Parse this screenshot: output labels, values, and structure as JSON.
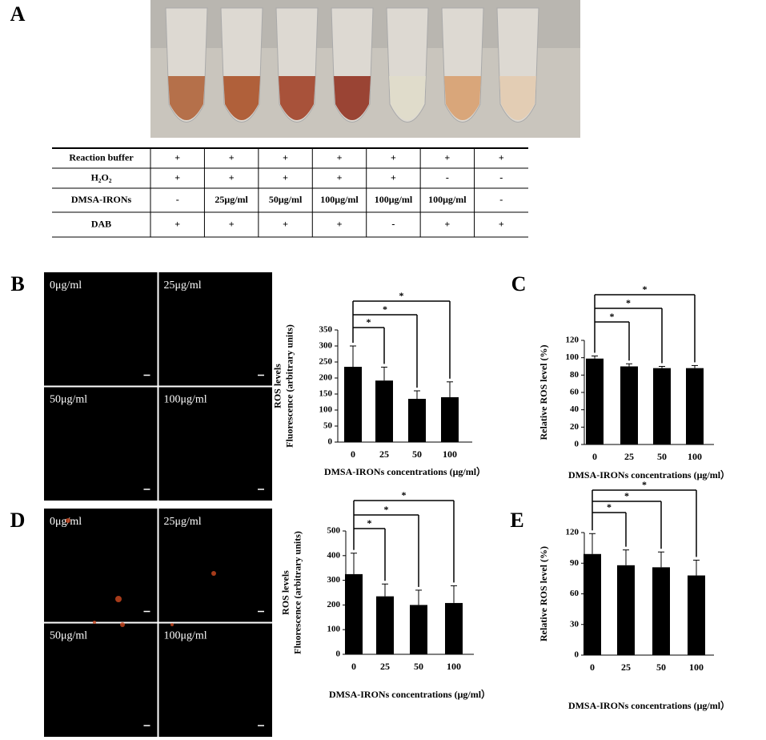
{
  "panel_labels": [
    "A",
    "B",
    "C",
    "D",
    "E"
  ],
  "table": {
    "rows": [
      [
        "Reaction buffer",
        "+",
        "+",
        "+",
        "+",
        "+",
        "+",
        "+"
      ],
      [
        "H₂O₂",
        "+",
        "+",
        "+",
        "+",
        "+",
        "-",
        "-"
      ],
      [
        "DMSA-IRONs",
        "-",
        "25μg/ml",
        "50μg/ml",
        "100μg/ml",
        "100μg/ml",
        "100μg/ml",
        "-"
      ],
      [
        "DAB",
        "+",
        "+",
        "+",
        "+",
        "-",
        "+",
        "+"
      ]
    ]
  },
  "micrographs": [
    [
      "0μg/ml",
      "25μg/ml",
      "50μg/ml",
      "100μg/ml"
    ],
    [
      "0μg/ml",
      "25μg/ml",
      "50μg/ml",
      "100μg/ml"
    ]
  ],
  "chart_data": [
    {
      "type": "bar",
      "ylabel": [
        "ROS levels",
        "Fluorescence (arbitrary units)"
      ],
      "xlabel": "DMSA-IRONs concentrations (μg/ml）",
      "categories": [
        "0",
        "25",
        "50",
        "100"
      ],
      "values": [
        235,
        192,
        135,
        140
      ],
      "errors": [
        65,
        42,
        25,
        48
      ],
      "ylim": [
        0,
        350
      ],
      "yticks": [
        0,
        50,
        100,
        150,
        200,
        250,
        300,
        350
      ],
      "annotations": [
        "*",
        "*",
        "*"
      ],
      "color": "#000000"
    },
    {
      "type": "bar",
      "ylabel": [
        "Relative ROS level (%)"
      ],
      "xlabel": "DMSA-IRONs concentrations (μg/ml）",
      "categories": [
        "0",
        "25",
        "50",
        "100"
      ],
      "values": [
        99,
        90,
        88,
        88
      ],
      "errors": [
        3,
        3,
        2,
        3
      ],
      "ylim": [
        0,
        120
      ],
      "yticks": [
        0,
        20,
        40,
        60,
        80,
        100,
        120
      ],
      "annotations": [
        "*",
        "*",
        "*"
      ],
      "color": "#000000"
    },
    {
      "type": "bar",
      "ylabel": [
        "ROS levels",
        "Fluorescence (arbitrary units)"
      ],
      "xlabel": "DMSA-IRONs concentrations (μg/ml）",
      "categories": [
        "0",
        "25",
        "50",
        "100"
      ],
      "values": [
        325,
        235,
        200,
        208
      ],
      "errors": [
        85,
        50,
        60,
        70
      ],
      "ylim": [
        0,
        500
      ],
      "yticks": [
        0,
        100,
        200,
        300,
        400,
        500
      ],
      "annotations": [
        "*",
        "*",
        "*"
      ],
      "color": "#000000"
    },
    {
      "type": "bar",
      "ylabel": [
        "Relative ROS level (%)"
      ],
      "xlabel": "DMSA-IRONs concentrations (μg/ml）",
      "categories": [
        "0",
        "25",
        "50",
        "100"
      ],
      "values": [
        99,
        88,
        86,
        78
      ],
      "errors": [
        20,
        15,
        15,
        15
      ],
      "ylim": [
        0,
        120
      ],
      "yticks": [
        0,
        30,
        60,
        90,
        120
      ],
      "annotations": [
        "*",
        "*",
        "*"
      ],
      "color": "#000000"
    }
  ]
}
